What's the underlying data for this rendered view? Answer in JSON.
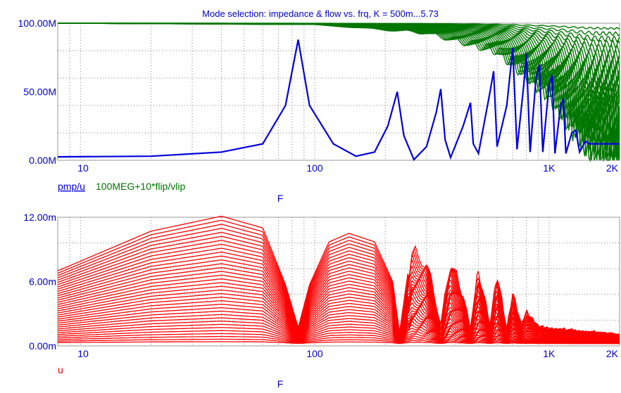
{
  "title": "Mode selection: impedance & flow vs. frq, K = 500m...5.73",
  "colors": {
    "axis_text": "#0000cc",
    "blue": "#0000dd",
    "green": "#007700",
    "red": "#ff0000",
    "grid": "#808080"
  },
  "chart_data": [
    {
      "type": "line",
      "xlabel": "F",
      "x_scale": "log",
      "xlim": [
        8,
        2000
      ],
      "ylim": [
        0,
        100000000
      ],
      "x_tick_labels": [
        {
          "value": 10,
          "label": "10"
        },
        {
          "value": 100,
          "label": "100"
        },
        {
          "value": 1000,
          "label": "1K"
        },
        {
          "value": 2000,
          "label": "2K"
        }
      ],
      "y_tick_labels": [
        {
          "value": 0,
          "label": "0.00M"
        },
        {
          "value": 50000000,
          "label": "50.00M"
        },
        {
          "value": 100000000,
          "label": "100.00M"
        }
      ],
      "legend": [
        {
          "label": "pmp/u",
          "color": "#0000dd"
        },
        {
          "label": "100MEG+10*flip/vlip",
          "color": "#007700"
        }
      ],
      "series": [
        {
          "name": "pmp/u",
          "color": "#0000dd",
          "points": [
            [
              8,
              2500000.0
            ],
            [
              20,
              3000000.0
            ],
            [
              40,
              6000000.0
            ],
            [
              60,
              12000000.0
            ],
            [
              75,
              40000000.0
            ],
            [
              85,
              88000000.0
            ],
            [
              95,
              40000000.0
            ],
            [
              120,
              12000000.0
            ],
            [
              150,
              3000000.0
            ],
            [
              180,
              6000000.0
            ],
            [
              205,
              25000000.0
            ],
            [
              225,
              50000000.0
            ],
            [
              240,
              18000000.0
            ],
            [
              265,
              500000.0
            ],
            [
              300,
              10000000.0
            ],
            [
              330,
              35000000.0
            ],
            [
              345,
              52000000.0
            ],
            [
              360,
              15000000.0
            ],
            [
              380,
              2000000.0
            ],
            [
              430,
              25000000.0
            ],
            [
              462,
              42000000.0
            ],
            [
              475,
              12000000.0
            ],
            [
              500,
              5000000.0
            ],
            [
              560,
              50000000.0
            ],
            [
              580,
              65000000.0
            ],
            [
              600,
              10000000.0
            ],
            [
              660,
              40000000.0
            ],
            [
              700,
              82000000.0
            ],
            [
              730,
              8000000.0
            ],
            [
              780,
              55000000.0
            ],
            [
              800,
              78000000.0
            ],
            [
              830,
              6000000.0
            ],
            [
              880,
              60000000.0
            ],
            [
              910,
              70000000.0
            ],
            [
              940,
              6000000.0
            ],
            [
              1000,
              55000000.0
            ],
            [
              1030,
              62000000.0
            ],
            [
              1060,
              5000000.0
            ],
            [
              1120,
              40000000.0
            ],
            [
              1150,
              45000000.0
            ],
            [
              1180,
              5000000.0
            ],
            [
              1250,
              20000000.0
            ],
            [
              1300,
              22000000.0
            ],
            [
              1350,
              6000000.0
            ],
            [
              1430,
              14000000.0
            ],
            [
              1480,
              12000000.0
            ],
            [
              1550,
              12000000.0
            ],
            [
              2000,
              12000000.0
            ]
          ]
        },
        {
          "name": "100MEG+10*flip/vlip",
          "color": "#007700",
          "description_free_values": "family of curves starting at 100M and fanning downward with ripples",
          "families": 25,
          "start_value": 100000000,
          "min_envelope": [
            [
              8,
              100000000.0
            ],
            [
              100,
              99000000.0
            ],
            [
              300,
              93000000.0
            ],
            [
              600,
              80000000.0
            ],
            [
              1000,
              50000000.0
            ],
            [
              1500,
              10000000.0
            ],
            [
              2000,
              3000000.0
            ]
          ]
        }
      ]
    },
    {
      "type": "line",
      "xlabel": "F",
      "x_scale": "log",
      "xlim": [
        8,
        2000
      ],
      "ylim": [
        0,
        0.012
      ],
      "x_tick_labels": [
        {
          "value": 10,
          "label": "10"
        },
        {
          "value": 100,
          "label": "100"
        },
        {
          "value": 1000,
          "label": "1K"
        },
        {
          "value": 2000,
          "label": "2K"
        }
      ],
      "y_tick_labels": [
        {
          "value": 0,
          "label": "0.00m"
        },
        {
          "value": 0.006,
          "label": "6.00m"
        },
        {
          "value": 0.012,
          "label": "12.00m"
        }
      ],
      "legend": [
        {
          "label": "u",
          "color": "#ff0000"
        }
      ],
      "series": [
        {
          "name": "u",
          "color": "#ff0000",
          "families": 36,
          "envelope_max": [
            [
              8,
              0.0068
            ],
            [
              20,
              0.0105
            ],
            [
              40,
              0.0119
            ],
            [
              60,
              0.0108
            ],
            [
              75,
              0.0055
            ],
            [
              85,
              0.0015
            ],
            [
              95,
              0.0055
            ],
            [
              115,
              0.0095
            ],
            [
              140,
              0.0103
            ],
            [
              180,
              0.0095
            ],
            [
              215,
              0.0058
            ],
            [
              230,
              0.001
            ],
            [
              260,
              0.0093
            ],
            [
              300,
              0.0085
            ],
            [
              345,
              0.002
            ],
            [
              380,
              0.0085
            ],
            [
              430,
              0.005
            ],
            [
              460,
              0.0016
            ],
            [
              500,
              0.0075
            ],
            [
              560,
              0.002
            ],
            [
              600,
              0.0072
            ],
            [
              660,
              0.0015
            ],
            [
              700,
              0.0052
            ],
            [
              760,
              0.002
            ],
            [
              800,
              0.0033
            ],
            [
              900,
              0.0018
            ],
            [
              1000,
              0.0016
            ],
            [
              2000,
              0.001
            ]
          ]
        }
      ]
    }
  ]
}
